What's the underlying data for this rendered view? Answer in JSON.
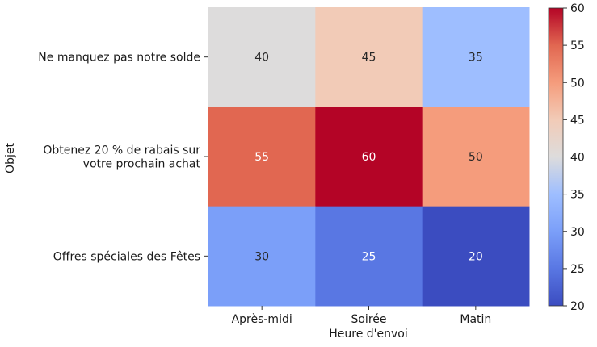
{
  "chart_data": {
    "type": "heatmap",
    "title": "",
    "xlabel": "Heure d'envoi",
    "ylabel": "Objet",
    "x_categories": [
      "Après-midi",
      "Soirée",
      "Matin"
    ],
    "y_categories": [
      [
        "Ne manquez pas notre solde"
      ],
      [
        "Obtenez 20 % de rabais sur",
        "votre prochain achat"
      ],
      [
        "Offres spéciales des Fêtes"
      ]
    ],
    "values": [
      [
        40,
        45,
        35
      ],
      [
        55,
        60,
        50
      ],
      [
        30,
        25,
        20
      ]
    ],
    "colormap": "coolwarm",
    "colorbar": {
      "range": [
        20,
        60
      ],
      "ticks": [
        20,
        25,
        30,
        35,
        40,
        45,
        50,
        55,
        60
      ]
    }
  }
}
